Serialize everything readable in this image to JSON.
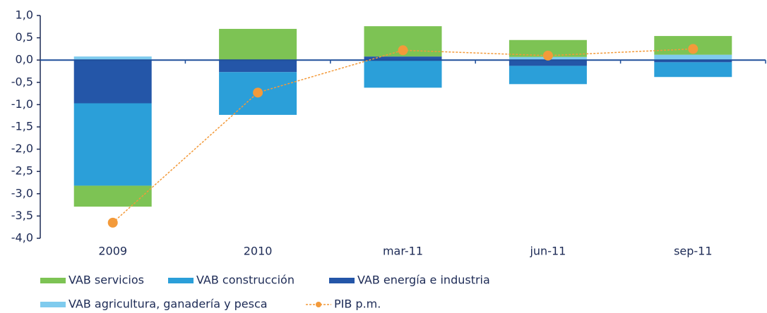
{
  "chart_data": {
    "type": "bar",
    "stacked": true,
    "categories": [
      "2009",
      "2010",
      "mar-11",
      "jun-11",
      "sep-11"
    ],
    "series": [
      {
        "name": "VAB servicios",
        "color": "#7dc354",
        "values": [
          -0.47,
          0.7,
          0.68,
          0.38,
          0.42
        ]
      },
      {
        "name": "VAB construcción",
        "color": "#2b9fd9",
        "values": [
          -1.85,
          -0.96,
          -0.62,
          -0.41,
          -0.33
        ]
      },
      {
        "name": "VAB energía e industria",
        "color": "#2456a8",
        "values": [
          -0.97,
          -0.27,
          0.08,
          -0.13,
          -0.05
        ]
      },
      {
        "name": "VAB agricultura, ganadería y pesca",
        "color": "#7fcbee",
        "values": [
          0.08,
          0,
          0,
          0.07,
          0.12
        ]
      },
      {
        "name": "PIB p.m.",
        "type": "line",
        "color": "#f39a3a",
        "values": [
          -3.65,
          -0.73,
          0.22,
          0.1,
          0.25
        ]
      }
    ],
    "ylim": [
      -4,
      1
    ],
    "yticks": [
      {
        "value": 1,
        "label": "1,0"
      },
      {
        "value": 0.5,
        "label": "0,5"
      },
      {
        "value": 0,
        "label": "0,0"
      },
      {
        "value": -0.5,
        "label": "-0,5"
      },
      {
        "value": -1,
        "label": "-1,0"
      },
      {
        "value": -1.5,
        "label": "-1,5"
      },
      {
        "value": -2,
        "label": "-2,0"
      },
      {
        "value": -2.5,
        "label": "-2,5"
      },
      {
        "value": -3,
        "label": "-3,0"
      },
      {
        "value": -3.5,
        "label": "-3,5"
      },
      {
        "value": -4,
        "label": "-4,0"
      }
    ],
    "grid": false
  }
}
